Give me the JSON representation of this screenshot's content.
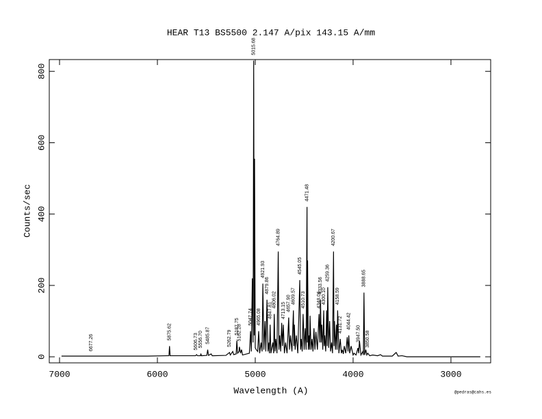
{
  "chart_data": {
    "type": "line",
    "title": "HEAR  T13  BS5500  2.147 A/pix  143.15 A/mm",
    "x_label": "Wavelength (A)",
    "y_label": "Counts/sec",
    "footer": "@pedras@cahs.es",
    "xlim": [
      7105,
      2594
    ],
    "ylim": [
      -17,
      833
    ],
    "xticks": [
      7000,
      6000,
      5000,
      4000,
      3000
    ],
    "yticks": [
      0,
      200,
      400,
      600,
      800
    ],
    "color": "#000000",
    "x": [
      6980,
      6700,
      6400,
      6100,
      5900,
      5882,
      5876,
      5870,
      5700,
      5610,
      5600,
      5590,
      5560,
      5556,
      5550,
      5495,
      5486,
      5478,
      5450,
      5440,
      5300,
      5263,
      5255,
      5230,
      5220,
      5195,
      5188,
      5180,
      5165,
      5162,
      5150,
      5140,
      5130,
      5060,
      5048,
      5040,
      5030,
      5022,
      5016,
      5010,
      5007,
      5000,
      4990,
      4975,
      4965,
      4955,
      4940,
      4930,
      4922,
      4912,
      4900,
      4892,
      4880,
      4870,
      4860,
      4855,
      4848,
      4840,
      4820,
      4812,
      4806,
      4798,
      4790,
      4778,
      4765,
      4758,
      4750,
      4740,
      4730,
      4722,
      4713,
      4702,
      4690,
      4675,
      4658,
      4650,
      4640,
      4625,
      4610,
      4605,
      4600,
      4592,
      4580,
      4565,
      4545,
      4537,
      4530,
      4520,
      4511,
      4500,
      4490,
      4480,
      4471,
      4468,
      4465,
      4458,
      4450,
      4445,
      4440,
      4430,
      4420,
      4410,
      4400,
      4390,
      4380,
      4365,
      4348,
      4340,
      4333,
      4326,
      4320,
      4310,
      4300,
      4295,
      4290,
      4280,
      4270,
      4265,
      4259,
      4250,
      4240,
      4230,
      4220,
      4210,
      4200,
      4195,
      4190,
      4180,
      4170,
      4164,
      4158,
      4145,
      4131,
      4120,
      4110,
      4100,
      4090,
      4075,
      4060,
      4052,
      4044,
      4035,
      4020,
      4000,
      3990,
      3970,
      3950,
      3943,
      3935,
      3920,
      3900,
      3895,
      3889,
      3882,
      3870,
      3860,
      3850,
      3830,
      3800,
      3750,
      3720,
      3700,
      3600,
      3560,
      3540,
      3500,
      3450,
      2700
    ],
    "values": [
      2,
      2,
      2,
      2,
      3,
      3,
      30,
      3,
      3,
      3,
      6,
      3,
      3,
      9,
      3,
      4,
      20,
      4,
      8,
      3,
      4,
      12,
      5,
      15,
      6,
      8,
      45,
      10,
      15,
      28,
      10,
      20,
      5,
      10,
      72,
      15,
      220,
      40,
      830,
      60,
      555,
      25,
      20,
      15,
      72,
      10,
      40,
      15,
      205,
      20,
      100,
      15,
      160,
      15,
      40,
      10,
      90,
      10,
      40,
      10,
      120,
      15,
      50,
      10,
      295,
      20,
      60,
      15,
      95,
      30,
      90,
      10,
      40,
      10,
      110,
      20,
      60,
      15,
      130,
      30,
      90,
      20,
      60,
      10,
      215,
      20,
      50,
      15,
      120,
      20,
      80,
      20,
      420,
      40,
      270,
      20,
      60,
      20,
      115,
      20,
      50,
      15,
      80,
      20,
      70,
      20,
      120,
      40,
      160,
      40,
      90,
      20,
      130,
      30,
      60,
      15,
      130,
      30,
      195,
      25,
      100,
      15,
      40,
      10,
      295,
      30,
      100,
      20,
      90,
      20,
      130,
      10,
      50,
      10,
      20,
      8,
      30,
      10,
      55,
      15,
      60,
      10,
      30,
      5,
      10,
      5,
      25,
      10,
      45,
      5,
      15,
      5,
      180,
      5,
      20,
      5,
      10,
      3,
      5,
      3,
      6,
      2,
      2,
      12,
      2,
      3,
      0,
      0
    ],
    "annotations": [
      "6677.26",
      "5875.62",
      "5606.73",
      "5556.70",
      "5485.87",
      "5262.79",
      "5187.75",
      "5162.28",
      "5047.74",
      "5015.68",
      "4965.08",
      "4921.93",
      "4879.86",
      "4847.81",
      "4806.02",
      "4764.89",
      "4713.15",
      "4657.90",
      "4609.57",
      "4545.05",
      "4510.73",
      "4471.48",
      "4348.06",
      "4333.56",
      "4300.10",
      "4259.36",
      "4200.67",
      "4158.59",
      "4131.72",
      "4044.42",
      "3947.50",
      "3888.65",
      "3850.58"
    ]
  }
}
